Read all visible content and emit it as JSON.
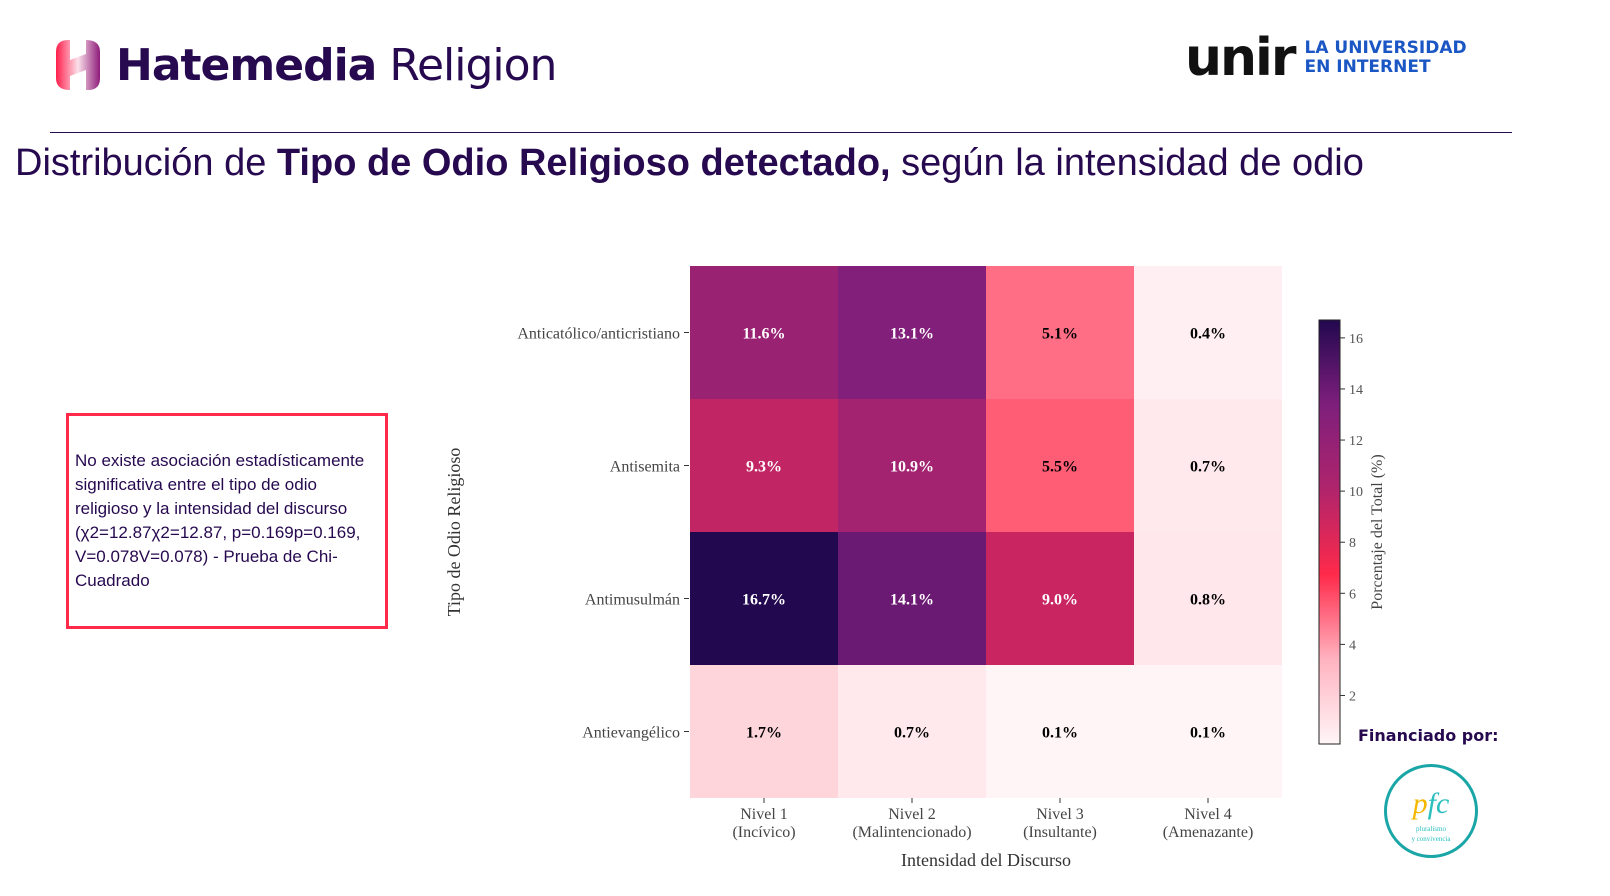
{
  "header": {
    "brand_bold": "Hatemedia",
    "brand_light": "Religion",
    "partner": "unir",
    "partner_sub1": "LA UNIVERSIDAD",
    "partner_sub2": "EN INTERNET"
  },
  "title": {
    "pre": "Distribución de ",
    "bold": "Tipo de Odio Religioso detectado,",
    "post": " según la intensidad de odio"
  },
  "note": "No existe asociación estadísticamente significativa entre el tipo de odio religioso y la intensidad del discurso (χ2=12.87χ2=12.87, p=0.169p=0.169, V=0.078V=0.078) - Prueba de Chi-Cuadrado",
  "funding": {
    "label": "Financiado por:",
    "logo_text": "fundación pluralismo y convivencia"
  },
  "chart_data": {
    "type": "heatmap",
    "xlabel": "Intensidad del Discurso",
    "ylabel": "Tipo de Odio Religioso",
    "x_categories": [
      [
        "Nivel 1",
        "(Incívico)"
      ],
      [
        "Nivel 2",
        "(Malintencionado)"
      ],
      [
        "Nivel 3",
        "(Insultante)"
      ],
      [
        "Nivel 4",
        "(Amenazante)"
      ]
    ],
    "y_categories": [
      "Anticatólico/anticristiano",
      "Antisemita",
      "Antimusulmán",
      "Antievangélico"
    ],
    "values": [
      [
        11.6,
        13.1,
        5.1,
        0.4
      ],
      [
        9.3,
        10.9,
        5.5,
        0.7
      ],
      [
        16.7,
        14.1,
        9.0,
        0.8
      ],
      [
        1.7,
        0.7,
        0.1,
        0.1
      ]
    ],
    "value_format": "%",
    "colorbar": {
      "label": "Porcentaje del Total (%)",
      "range": [
        0.1,
        16.7
      ],
      "ticks": [
        2,
        4,
        6,
        8,
        10,
        12,
        14,
        16
      ],
      "colormap": [
        "#fff5f7",
        "#ffb3c0",
        "#ff2a4a",
        "#b0246c",
        "#7e1f7c",
        "#22084f"
      ]
    }
  }
}
